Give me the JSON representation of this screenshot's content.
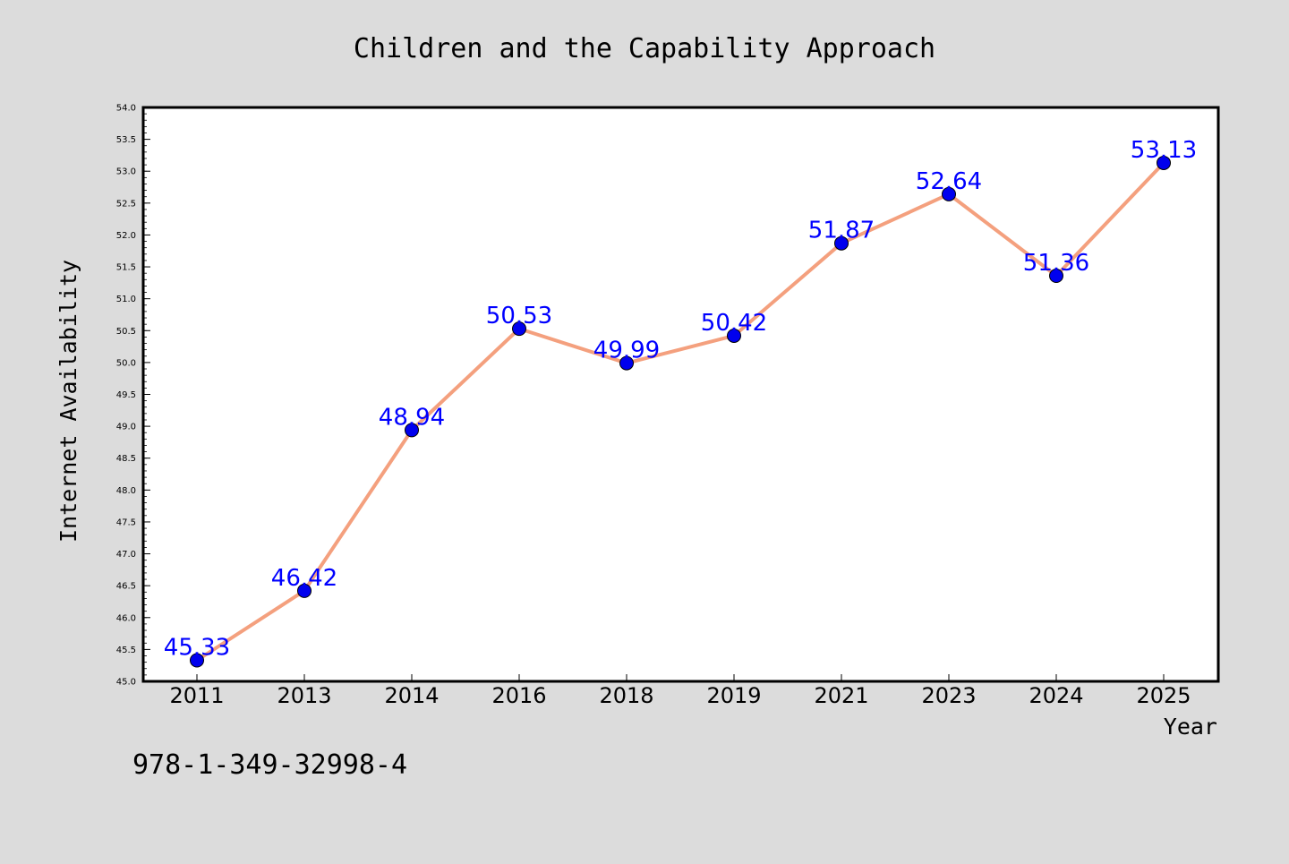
{
  "chart_data": {
    "type": "line",
    "title": "Children and the Capability Approach",
    "xlabel": "Year",
    "ylabel": "Internet Availability",
    "categories": [
      "2011",
      "2013",
      "2014",
      "2016",
      "2018",
      "2019",
      "2021",
      "2023",
      "2024",
      "2025"
    ],
    "series": [
      {
        "values": [
          45.33,
          46.42,
          48.94,
          50.53,
          49.99,
          50.42,
          51.87,
          52.64,
          51.36,
          53.13
        ]
      }
    ],
    "data_labels": [
      "45.33",
      "46.42",
      "48.94",
      "50.53",
      "49.99",
      "50.42",
      "51.87",
      "52.64",
      "51.36",
      "53.13"
    ],
    "ylim": [
      45.0,
      54.0
    ],
    "yticks": [
      "45.0",
      "45.5",
      "46.0",
      "46.5",
      "47.0",
      "47.5",
      "48.0",
      "48.5",
      "49.0",
      "49.5",
      "50.0",
      "50.5",
      "51.0",
      "51.5",
      "52.0",
      "52.5",
      "53.0",
      "53.5",
      "54.0"
    ],
    "grid": false,
    "line_color": "#f4a07e",
    "marker_color": "#0000ee",
    "label_color": "#0000ff",
    "plot_background": "#ffffff",
    "figure_background": "#dcdcdc"
  },
  "annotation": {
    "isbn": "978-1-349-32998-4"
  }
}
